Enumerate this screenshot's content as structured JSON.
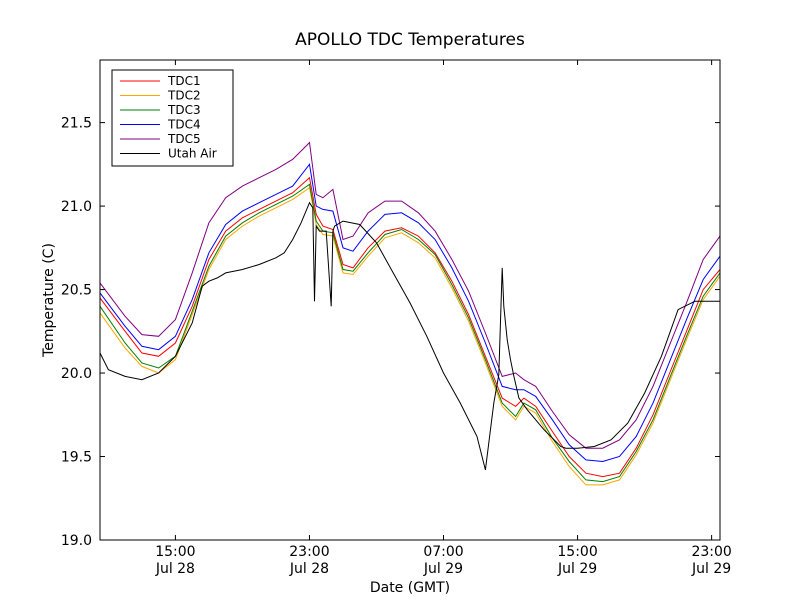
{
  "chart_data": {
    "type": "line",
    "title": "APOLLO TDC Temperatures",
    "xlabel": "Date (GMT)",
    "ylabel": "Temperature (C)",
    "xlim": [
      10.5,
      47.5
    ],
    "ylim": [
      19.0,
      21.875
    ],
    "grid": false,
    "legend_position": "top-left",
    "x_units": "hours since Jul 28 00:00 GMT",
    "x_ticks": [
      {
        "value": 15,
        "line1": "15:00",
        "line2": "Jul 28"
      },
      {
        "value": 23,
        "line1": "23:00",
        "line2": "Jul 28"
      },
      {
        "value": 31,
        "line1": "07:00",
        "line2": "Jul 29"
      },
      {
        "value": 39,
        "line1": "15:00",
        "line2": "Jul 29"
      },
      {
        "value": 47,
        "line1": "23:00",
        "line2": "Jul 29"
      }
    ],
    "y_ticks": [
      {
        "value": 19.0,
        "label": "19.0"
      },
      {
        "value": 19.5,
        "label": "19.5"
      },
      {
        "value": 20.0,
        "label": "20.0"
      },
      {
        "value": 20.5,
        "label": "20.5"
      },
      {
        "value": 21.0,
        "label": "21.0"
      },
      {
        "value": 21.5,
        "label": "21.5"
      }
    ],
    "series": [
      {
        "name": "TDC1",
        "color": "#ff0000",
        "x": [
          10.5,
          12,
          13,
          14,
          15,
          16,
          17,
          18,
          19,
          20,
          21,
          22,
          23,
          23.4,
          23.8,
          24.4,
          25,
          25.6,
          26.5,
          27.5,
          28.5,
          29.5,
          30.5,
          31.5,
          32.5,
          33.5,
          34.5,
          35.3,
          35.8,
          36.5,
          37.5,
          38.5,
          39.5,
          40.5,
          41.5,
          42.5,
          43.5,
          44.5,
          45.5,
          46.5,
          47.5
        ],
        "values": [
          20.45,
          20.25,
          20.12,
          20.1,
          20.18,
          20.4,
          20.68,
          20.85,
          20.93,
          20.98,
          21.03,
          21.08,
          21.17,
          20.95,
          20.88,
          20.86,
          20.65,
          20.63,
          20.75,
          20.85,
          20.87,
          20.82,
          20.72,
          20.55,
          20.35,
          20.1,
          19.85,
          19.8,
          19.85,
          19.8,
          19.65,
          19.5,
          19.4,
          19.38,
          19.4,
          19.55,
          19.75,
          20.0,
          20.25,
          20.5,
          20.62
        ]
      },
      {
        "name": "TDC2",
        "color": "#ffa500",
        "x": [
          10.5,
          12,
          13,
          14,
          15,
          16,
          17,
          18,
          19,
          20,
          21,
          22,
          23,
          23.4,
          23.8,
          24.4,
          25,
          25.6,
          26.5,
          27.5,
          28.5,
          29.5,
          30.5,
          31.5,
          32.5,
          33.5,
          34.5,
          35.3,
          35.8,
          36.5,
          37.5,
          38.5,
          39.5,
          40.5,
          41.5,
          42.5,
          43.5,
          44.5,
          45.5,
          46.5,
          47.5
        ],
        "values": [
          20.36,
          20.15,
          20.04,
          20.0,
          20.08,
          20.35,
          20.62,
          20.8,
          20.88,
          20.94,
          20.99,
          21.04,
          21.11,
          20.89,
          20.83,
          20.82,
          20.6,
          20.59,
          20.7,
          20.81,
          20.84,
          20.78,
          20.69,
          20.51,
          20.31,
          20.06,
          19.8,
          19.72,
          19.8,
          19.76,
          19.59,
          19.44,
          19.33,
          19.33,
          19.36,
          19.51,
          19.7,
          19.95,
          20.2,
          20.44,
          20.58
        ]
      },
      {
        "name": "TDC3",
        "color": "#008000",
        "x": [
          10.5,
          12,
          13,
          14,
          15,
          16,
          17,
          18,
          19,
          20,
          21,
          22,
          23,
          23.4,
          23.8,
          24.4,
          25,
          25.6,
          26.5,
          27.5,
          28.5,
          29.5,
          30.5,
          31.5,
          32.5,
          33.5,
          34.5,
          35.3,
          35.8,
          36.5,
          37.5,
          38.5,
          39.5,
          40.5,
          41.5,
          42.5,
          43.5,
          44.5,
          45.5,
          46.5,
          47.5
        ],
        "values": [
          20.4,
          20.18,
          20.06,
          20.03,
          20.1,
          20.37,
          20.64,
          20.82,
          20.9,
          20.96,
          21.01,
          21.06,
          21.13,
          20.91,
          20.85,
          20.84,
          20.62,
          20.61,
          20.72,
          20.83,
          20.86,
          20.8,
          20.71,
          20.53,
          20.33,
          20.08,
          19.82,
          19.74,
          19.82,
          19.78,
          19.61,
          19.47,
          19.36,
          19.35,
          19.38,
          19.53,
          19.72,
          19.97,
          20.22,
          20.46,
          20.6
        ]
      },
      {
        "name": "TDC4",
        "color": "#0000ff",
        "x": [
          10.5,
          12,
          13,
          14,
          15,
          16,
          17,
          18,
          19,
          20,
          21,
          22,
          23,
          23.4,
          23.8,
          24.4,
          25,
          25.6,
          26.5,
          27.5,
          28.5,
          29.5,
          30.5,
          31.5,
          32.5,
          33.5,
          34.5,
          35.3,
          35.8,
          36.5,
          37.5,
          38.5,
          39.5,
          40.5,
          41.5,
          42.5,
          43.5,
          44.5,
          45.5,
          46.5,
          47.5
        ],
        "values": [
          20.48,
          20.28,
          20.16,
          20.14,
          20.22,
          20.44,
          20.72,
          20.89,
          20.97,
          21.02,
          21.07,
          21.12,
          21.25,
          21.0,
          20.98,
          20.97,
          20.75,
          20.73,
          20.85,
          20.95,
          20.96,
          20.9,
          20.8,
          20.63,
          20.43,
          20.18,
          19.92,
          19.9,
          19.9,
          19.86,
          19.72,
          19.57,
          19.48,
          19.47,
          19.5,
          19.62,
          19.82,
          20.07,
          20.32,
          20.56,
          20.7
        ]
      },
      {
        "name": "TDC5",
        "color": "#800080",
        "x": [
          10.5,
          12,
          13,
          14,
          15,
          16,
          17,
          18,
          19,
          20,
          21,
          22,
          23,
          23.4,
          23.8,
          24.4,
          25,
          25.6,
          26.5,
          27.5,
          28.5,
          29.5,
          30.5,
          31.5,
          32.5,
          33.5,
          34.5,
          35.3,
          35.8,
          36.5,
          37.5,
          38.5,
          39.5,
          40.5,
          41.5,
          42.5,
          43.5,
          44.5,
          45.5,
          46.5,
          47.5
        ],
        "values": [
          20.54,
          20.34,
          20.23,
          20.22,
          20.32,
          20.6,
          20.9,
          21.05,
          21.12,
          21.17,
          21.22,
          21.28,
          21.38,
          21.07,
          21.05,
          21.1,
          20.8,
          20.82,
          20.96,
          21.03,
          21.03,
          20.96,
          20.85,
          20.68,
          20.49,
          20.24,
          19.98,
          20.0,
          19.96,
          19.92,
          19.77,
          19.63,
          19.55,
          19.55,
          19.6,
          19.72,
          19.92,
          20.17,
          20.42,
          20.68,
          20.82
        ]
      },
      {
        "name": "Utah Air",
        "color": "#000000",
        "x": [
          10.5,
          11,
          12,
          13,
          14,
          15,
          16,
          16.6,
          17,
          17.5,
          18,
          19,
          20,
          21,
          21.5,
          22,
          22.5,
          23,
          23.2,
          23.3,
          23.4,
          23.6,
          24,
          24.3,
          24.4,
          24.5,
          25,
          26,
          27,
          28,
          29,
          30,
          31,
          32,
          33,
          33.5,
          34,
          34.3,
          34.5,
          34.6,
          34.8,
          35,
          35.2,
          35.5,
          36,
          37,
          38,
          38.3,
          38.5,
          39,
          40,
          41,
          42,
          43,
          44,
          45,
          46,
          47,
          47.5
        ],
        "values": [
          20.12,
          20.02,
          19.98,
          19.96,
          20.0,
          20.1,
          20.3,
          20.52,
          20.55,
          20.57,
          20.6,
          20.62,
          20.65,
          20.69,
          20.72,
          20.8,
          20.9,
          21.02,
          20.99,
          20.43,
          20.88,
          20.85,
          20.85,
          20.4,
          20.85,
          20.88,
          20.91,
          20.89,
          20.78,
          20.6,
          20.42,
          20.22,
          20.0,
          19.82,
          19.62,
          19.42,
          19.82,
          19.99,
          20.63,
          20.4,
          20.2,
          20.08,
          19.98,
          19.85,
          19.78,
          19.66,
          19.56,
          19.55,
          19.55,
          19.55,
          19.56,
          19.6,
          19.7,
          19.88,
          20.1,
          20.38,
          20.43,
          20.43,
          20.43
        ]
      }
    ]
  }
}
